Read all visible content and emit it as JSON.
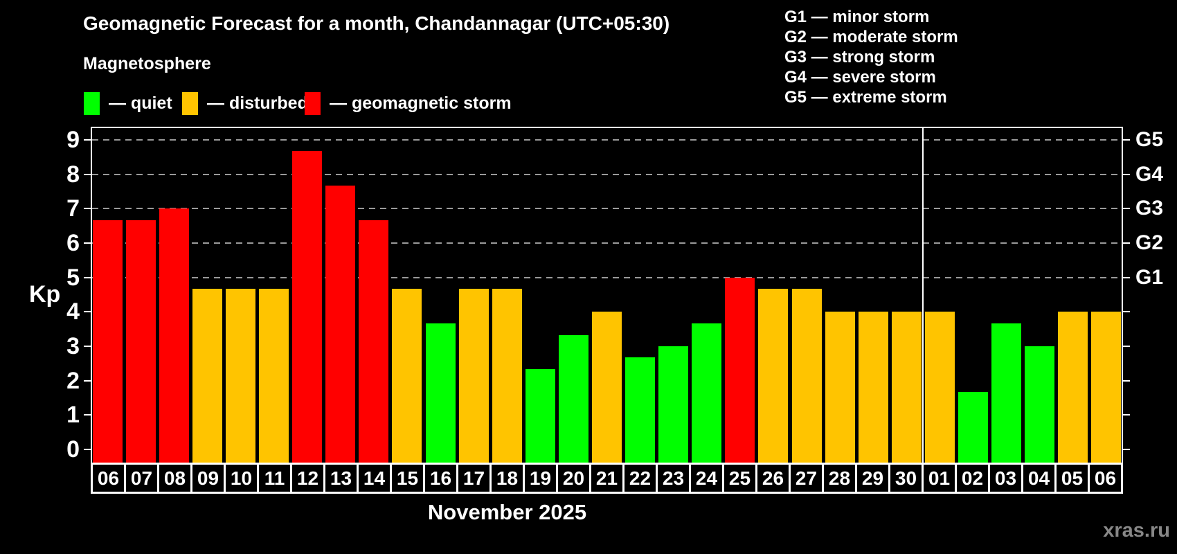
{
  "header": {
    "title": "Geomagnetic Forecast for a month, Chandannagar (UTC+05:30)",
    "subtitle": "Magnetosphere"
  },
  "legend": {
    "items": [
      {
        "key": "quiet",
        "label": "— quiet",
        "color": "#00ff00"
      },
      {
        "key": "disturbed",
        "label": "— disturbed",
        "color": "#ffc400"
      },
      {
        "key": "storm",
        "label": "— geomagnetic storm",
        "color": "#ff0000"
      }
    ]
  },
  "storm_scale_legend": {
    "items": [
      "G1 — minor storm",
      "G2 — moderate storm",
      "G3 — strong storm",
      "G4 — severe storm",
      "G5 — extreme storm"
    ]
  },
  "chart_data": {
    "type": "bar",
    "title": "Geomagnetic Forecast for a month, Chandannagar (UTC+05:30)",
    "subtitle": "Magnetosphere",
    "ylabel": "Kp",
    "xlabel": "November 2025",
    "ylim": [
      0,
      9
    ],
    "yticks": [
      0,
      1,
      2,
      3,
      4,
      5,
      6,
      7,
      8,
      9
    ],
    "gridlines_kp": [
      5,
      6,
      7,
      8,
      9
    ],
    "grid": "dashed, only at storm levels G1–G5",
    "right_axis_labels": [
      {
        "label": "G1",
        "kp": 5
      },
      {
        "label": "G2",
        "kp": 6
      },
      {
        "label": "G3",
        "kp": 7
      },
      {
        "label": "G4",
        "kp": 8
      },
      {
        "label": "G5",
        "kp": 9
      }
    ],
    "month_divider_after_index": 24,
    "bars": [
      {
        "day": "06",
        "kp": 6.67,
        "status": "storm"
      },
      {
        "day": "07",
        "kp": 6.67,
        "status": "storm"
      },
      {
        "day": "08",
        "kp": 7.0,
        "status": "storm"
      },
      {
        "day": "09",
        "kp": 4.67,
        "status": "disturbed"
      },
      {
        "day": "10",
        "kp": 4.67,
        "status": "disturbed"
      },
      {
        "day": "11",
        "kp": 4.67,
        "status": "disturbed"
      },
      {
        "day": "12",
        "kp": 8.67,
        "status": "storm"
      },
      {
        "day": "13",
        "kp": 7.67,
        "status": "storm"
      },
      {
        "day": "14",
        "kp": 6.67,
        "status": "storm"
      },
      {
        "day": "15",
        "kp": 4.67,
        "status": "disturbed"
      },
      {
        "day": "16",
        "kp": 3.67,
        "status": "quiet"
      },
      {
        "day": "17",
        "kp": 4.67,
        "status": "disturbed"
      },
      {
        "day": "18",
        "kp": 4.67,
        "status": "disturbed"
      },
      {
        "day": "19",
        "kp": 2.33,
        "status": "quiet"
      },
      {
        "day": "20",
        "kp": 3.33,
        "status": "quiet"
      },
      {
        "day": "21",
        "kp": 4.0,
        "status": "disturbed"
      },
      {
        "day": "22",
        "kp": 2.67,
        "status": "quiet"
      },
      {
        "day": "23",
        "kp": 3.0,
        "status": "quiet"
      },
      {
        "day": "24",
        "kp": 3.67,
        "status": "quiet"
      },
      {
        "day": "25",
        "kp": 5.0,
        "status": "storm"
      },
      {
        "day": "26",
        "kp": 4.67,
        "status": "disturbed"
      },
      {
        "day": "27",
        "kp": 4.67,
        "status": "disturbed"
      },
      {
        "day": "28",
        "kp": 4.0,
        "status": "disturbed"
      },
      {
        "day": "29",
        "kp": 4.0,
        "status": "disturbed"
      },
      {
        "day": "30",
        "kp": 4.0,
        "status": "disturbed"
      },
      {
        "day": "01",
        "kp": 4.0,
        "status": "disturbed"
      },
      {
        "day": "02",
        "kp": 1.67,
        "status": "quiet"
      },
      {
        "day": "03",
        "kp": 3.67,
        "status": "quiet"
      },
      {
        "day": "04",
        "kp": 3.0,
        "status": "quiet"
      },
      {
        "day": "05",
        "kp": 4.0,
        "status": "disturbed"
      },
      {
        "day": "06",
        "kp": 4.0,
        "status": "disturbed"
      }
    ],
    "watermark": "xras.ru"
  }
}
